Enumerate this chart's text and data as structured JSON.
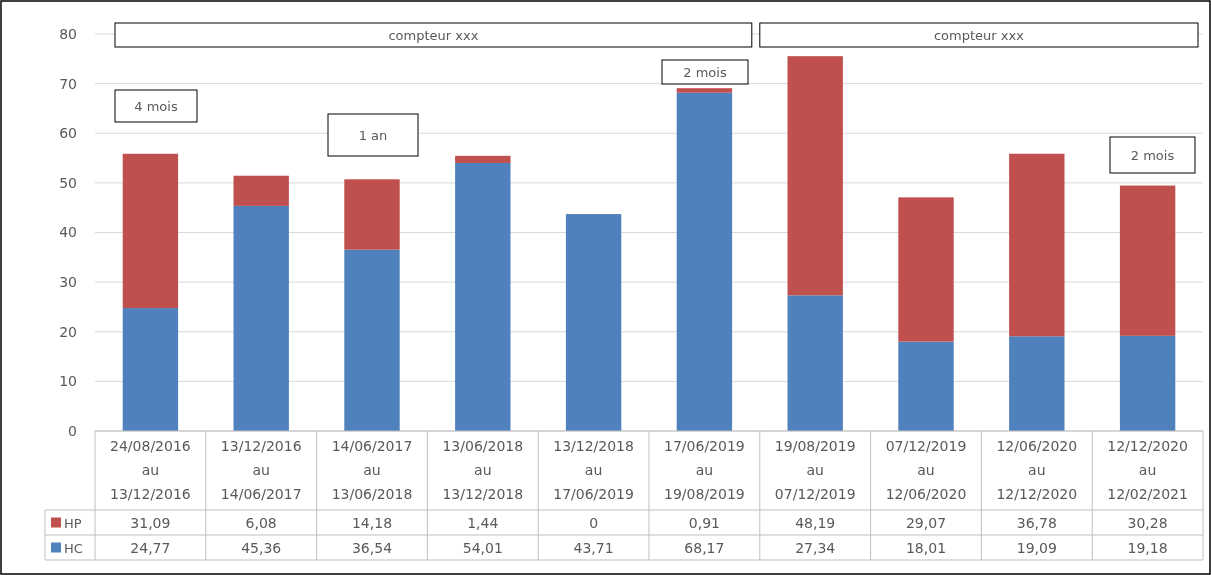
{
  "chart_data": {
    "type": "bar",
    "stacked": true,
    "grid": "y",
    "legend": "bottom",
    "categories": [
      "24/08/2016 au 13/12/2016",
      "13/12/2016 au 14/06/2017",
      "14/06/2017 au 13/06/2018",
      "13/06/2018 au 13/12/2018",
      "13/12/2018 au 17/06/2019",
      "17/06/2019 au 19/08/2019",
      "19/08/2019 au 07/12/2019",
      "07/12/2019 au 12/06/2020",
      "12/06/2020 au 12/12/2020",
      "12/12/2020 au 12/02/2021"
    ],
    "series": [
      {
        "name": "HC",
        "color": "#4f81bd",
        "values": [
          24.77,
          45.36,
          36.54,
          54.01,
          43.71,
          68.17,
          27.34,
          18.01,
          19.09,
          19.18
        ],
        "value_labels": [
          "24,77",
          "45,36",
          "36,54",
          "54,01",
          "43,71",
          "68,17",
          "27,34",
          "18,01",
          "19,09",
          "19,18"
        ]
      },
      {
        "name": "HP",
        "color": "#c0504d",
        "values": [
          31.09,
          6.08,
          14.18,
          1.44,
          0,
          0.91,
          48.19,
          29.07,
          36.78,
          30.28
        ],
        "value_labels": [
          "31,09",
          "6,08",
          "14,18",
          "1,44",
          "0",
          "0,91",
          "48,19",
          "29,07",
          "36,78",
          "30,28"
        ]
      }
    ],
    "ylim": [
      0,
      80
    ],
    "yticks": [
      0,
      10,
      20,
      30,
      40,
      50,
      60,
      70,
      80
    ],
    "annotations": [
      "compteur xxx",
      "compteur xxx",
      "4 mois",
      "1 an",
      "2 mois",
      "2 mois"
    ]
  }
}
